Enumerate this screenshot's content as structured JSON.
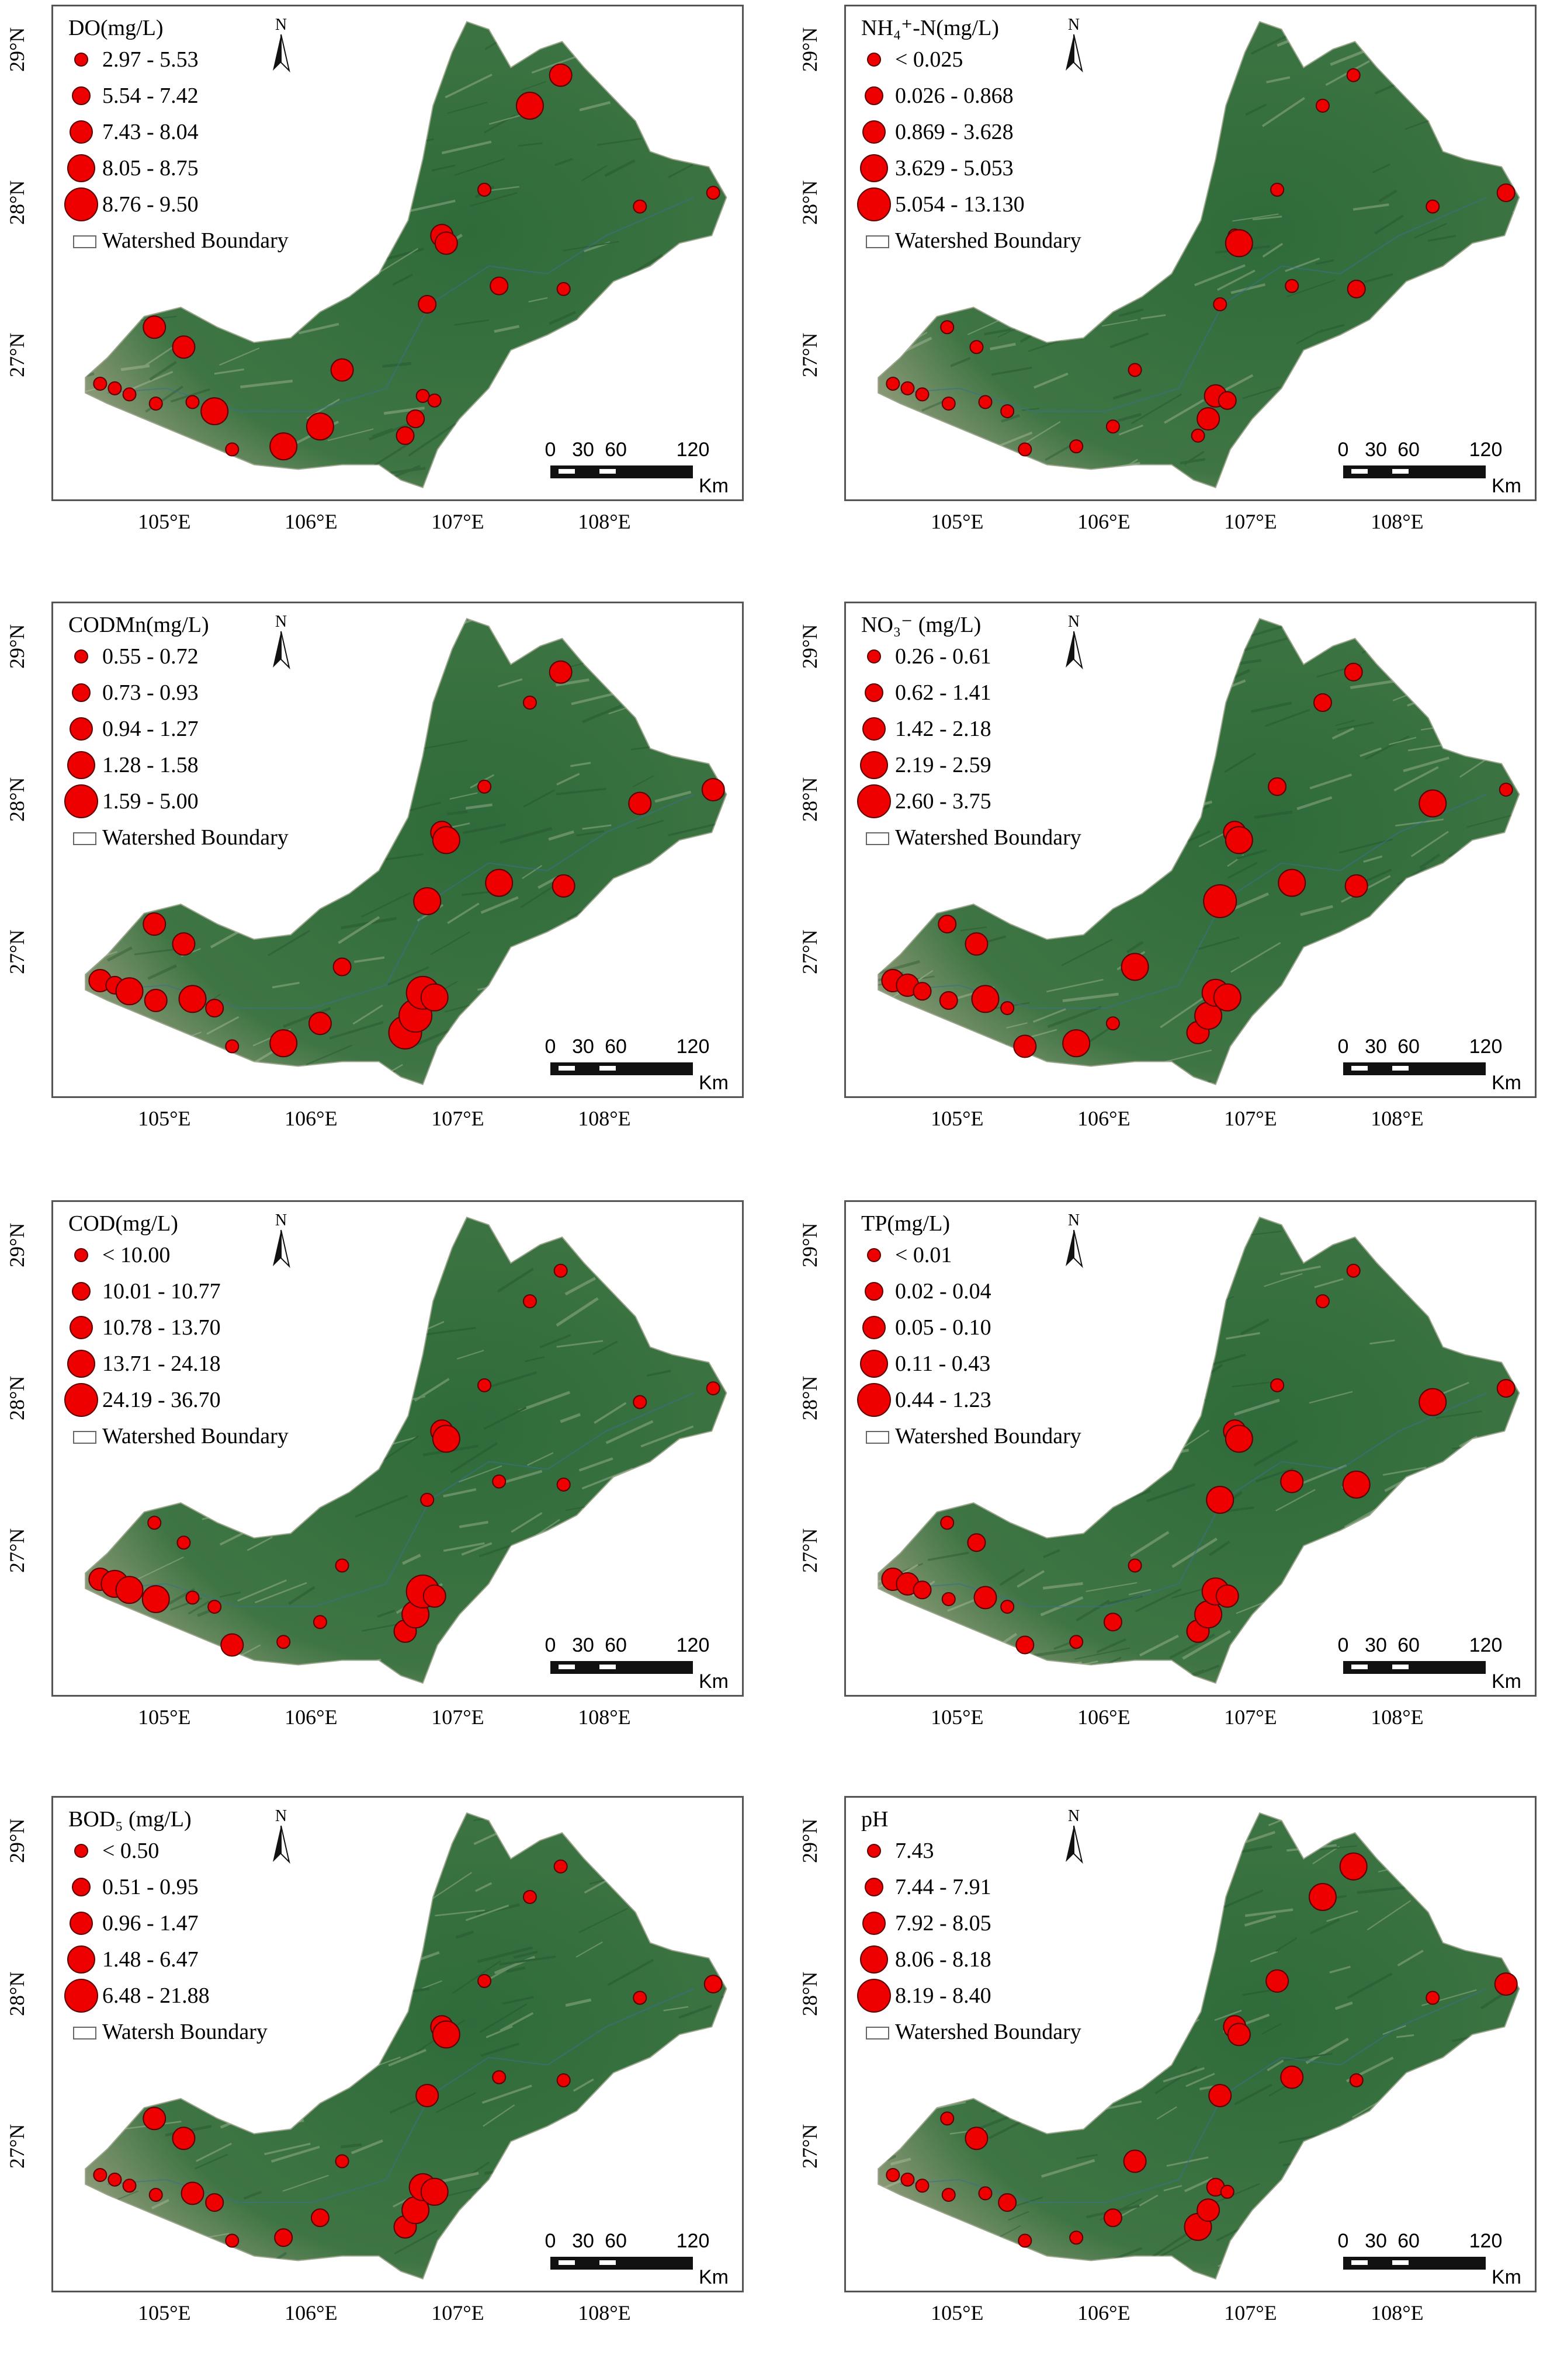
{
  "panels": [
    {
      "legend_title": "DO(mg/L)",
      "classes": [
        "2.97 - 5.53",
        "5.54 - 7.42",
        "7.43 - 8.04",
        "8.05 - 8.75",
        "8.76 - 9.50"
      ],
      "boundary_label": "Watershed Boundary",
      "sites": [
        [
          104.55,
          26.78,
          0
        ],
        [
          104.65,
          26.75,
          0
        ],
        [
          104.75,
          26.71,
          0
        ],
        [
          104.92,
          27.15,
          2
        ],
        [
          104.93,
          26.65,
          0
        ],
        [
          105.12,
          27.02,
          2
        ],
        [
          105.18,
          26.66,
          0
        ],
        [
          105.33,
          26.6,
          3
        ],
        [
          105.45,
          26.35,
          0
        ],
        [
          105.8,
          26.37,
          3
        ],
        [
          106.05,
          26.5,
          3
        ],
        [
          106.2,
          26.87,
          2
        ],
        [
          106.63,
          26.44,
          1
        ],
        [
          106.7,
          26.55,
          1
        ],
        [
          106.75,
          26.7,
          0
        ],
        [
          106.78,
          27.3,
          1
        ],
        [
          106.83,
          26.67,
          0
        ],
        [
          106.88,
          27.75,
          2
        ],
        [
          106.91,
          27.7,
          2
        ],
        [
          107.17,
          28.05,
          0
        ],
        [
          107.27,
          27.42,
          1
        ],
        [
          107.48,
          28.6,
          3
        ],
        [
          107.69,
          28.8,
          2
        ],
        [
          107.71,
          27.4,
          0
        ],
        [
          108.23,
          27.94,
          0
        ],
        [
          108.73,
          28.03,
          0
        ]
      ]
    },
    {
      "legend_title": "NH₄⁺-N(mg/L)",
      "classes": [
        "< 0.025",
        "0.026 - 0.868",
        "0.869 - 3.628",
        "3.629 - 5.053",
        "5.054 - 13.130"
      ],
      "boundary_label": "Watershed Boundary",
      "sites": [
        [
          104.55,
          26.78,
          0
        ],
        [
          104.65,
          26.75,
          0
        ],
        [
          104.75,
          26.71,
          0
        ],
        [
          104.92,
          27.15,
          0
        ],
        [
          104.93,
          26.65,
          0
        ],
        [
          105.12,
          27.02,
          0
        ],
        [
          105.18,
          26.66,
          0
        ],
        [
          105.33,
          26.6,
          0
        ],
        [
          105.45,
          26.35,
          0
        ],
        [
          105.8,
          26.37,
          0
        ],
        [
          106.05,
          26.5,
          0
        ],
        [
          106.2,
          26.87,
          0
        ],
        [
          106.63,
          26.44,
          0
        ],
        [
          106.7,
          26.55,
          2
        ],
        [
          106.75,
          26.7,
          2
        ],
        [
          106.78,
          27.3,
          0
        ],
        [
          106.83,
          26.67,
          1
        ],
        [
          106.88,
          27.75,
          0
        ],
        [
          106.91,
          27.7,
          3
        ],
        [
          107.17,
          28.05,
          0
        ],
        [
          107.27,
          27.42,
          0
        ],
        [
          107.48,
          28.6,
          0
        ],
        [
          107.69,
          28.8,
          0
        ],
        [
          107.71,
          27.4,
          1
        ],
        [
          108.23,
          27.94,
          0
        ],
        [
          108.73,
          28.03,
          1
        ]
      ]
    },
    {
      "legend_title": "CODMn(mg/L)",
      "classes": [
        "0.55 - 0.72",
        "0.73 - 0.93",
        "0.94 - 1.27",
        "1.28 - 1.58",
        "1.59 - 5.00"
      ],
      "boundary_label": "Watershed Boundary",
      "sites": [
        [
          104.55,
          26.78,
          2
        ],
        [
          104.65,
          26.75,
          1
        ],
        [
          104.75,
          26.71,
          3
        ],
        [
          104.92,
          27.15,
          2
        ],
        [
          104.93,
          26.65,
          2
        ],
        [
          105.12,
          27.02,
          2
        ],
        [
          105.18,
          26.66,
          3
        ],
        [
          105.33,
          26.6,
          1
        ],
        [
          105.45,
          26.35,
          0
        ],
        [
          105.8,
          26.37,
          3
        ],
        [
          106.05,
          26.5,
          2
        ],
        [
          106.2,
          26.87,
          1
        ],
        [
          106.63,
          26.44,
          4
        ],
        [
          106.7,
          26.55,
          4
        ],
        [
          106.75,
          26.7,
          4
        ],
        [
          106.78,
          27.3,
          3
        ],
        [
          106.83,
          26.67,
          3
        ],
        [
          106.88,
          27.75,
          2
        ],
        [
          106.91,
          27.7,
          3
        ],
        [
          107.17,
          28.05,
          0
        ],
        [
          107.27,
          27.42,
          3
        ],
        [
          107.48,
          28.6,
          0
        ],
        [
          107.69,
          28.8,
          2
        ],
        [
          107.71,
          27.4,
          2
        ],
        [
          108.23,
          27.94,
          2
        ],
        [
          108.73,
          28.03,
          2
        ]
      ]
    },
    {
      "legend_title": "NO₃⁻ (mg/L)",
      "classes": [
        "0.26 - 0.61",
        "0.62 - 1.41",
        "1.42 - 2.18",
        "2.19 - 2.59",
        "2.60 - 3.75"
      ],
      "boundary_label": "Watershed Boundary",
      "sites": [
        [
          104.55,
          26.78,
          2
        ],
        [
          104.65,
          26.75,
          2
        ],
        [
          104.75,
          26.71,
          1
        ],
        [
          104.92,
          27.15,
          1
        ],
        [
          104.93,
          26.65,
          1
        ],
        [
          105.12,
          27.02,
          2
        ],
        [
          105.18,
          26.66,
          3
        ],
        [
          105.33,
          26.6,
          0
        ],
        [
          105.45,
          26.35,
          2
        ],
        [
          105.8,
          26.37,
          3
        ],
        [
          106.05,
          26.5,
          0
        ],
        [
          106.2,
          26.87,
          3
        ],
        [
          106.63,
          26.44,
          2
        ],
        [
          106.7,
          26.55,
          3
        ],
        [
          106.75,
          26.7,
          3
        ],
        [
          106.78,
          27.3,
          4
        ],
        [
          106.83,
          26.67,
          3
        ],
        [
          106.88,
          27.75,
          2
        ],
        [
          106.91,
          27.7,
          3
        ],
        [
          107.17,
          28.05,
          1
        ],
        [
          107.27,
          27.42,
          3
        ],
        [
          107.48,
          28.6,
          1
        ],
        [
          107.69,
          28.8,
          1
        ],
        [
          107.71,
          27.4,
          2
        ],
        [
          108.23,
          27.94,
          3
        ],
        [
          108.73,
          28.03,
          0
        ]
      ]
    },
    {
      "legend_title": "COD(mg/L)",
      "classes": [
        "< 10.00",
        "10.01 - 10.77",
        "10.78 - 13.70",
        "13.71 - 24.18",
        "24.19 - 36.70"
      ],
      "boundary_label": "Watershed Boundary",
      "sites": [
        [
          104.55,
          26.78,
          2
        ],
        [
          104.65,
          26.75,
          3
        ],
        [
          104.75,
          26.71,
          3
        ],
        [
          104.92,
          27.15,
          0
        ],
        [
          104.93,
          26.65,
          3
        ],
        [
          105.12,
          27.02,
          0
        ],
        [
          105.18,
          26.66,
          0
        ],
        [
          105.33,
          26.6,
          0
        ],
        [
          105.45,
          26.35,
          2
        ],
        [
          105.8,
          26.37,
          0
        ],
        [
          106.05,
          26.5,
          0
        ],
        [
          106.2,
          26.87,
          0
        ],
        [
          106.63,
          26.44,
          2
        ],
        [
          106.7,
          26.55,
          3
        ],
        [
          106.75,
          26.7,
          4
        ],
        [
          106.78,
          27.3,
          0
        ],
        [
          106.83,
          26.67,
          2
        ],
        [
          106.88,
          27.75,
          2
        ],
        [
          106.91,
          27.7,
          3
        ],
        [
          107.17,
          28.05,
          0
        ],
        [
          107.27,
          27.42,
          0
        ],
        [
          107.48,
          28.6,
          0
        ],
        [
          107.69,
          28.8,
          0
        ],
        [
          107.71,
          27.4,
          0
        ],
        [
          108.23,
          27.94,
          0
        ],
        [
          108.73,
          28.03,
          0
        ]
      ]
    },
    {
      "legend_title": "TP(mg/L)",
      "classes": [
        "< 0.01",
        "0.02 - 0.04",
        "0.05 - 0.10",
        "0.11 - 0.43",
        "0.44 - 1.23"
      ],
      "boundary_label": "Watershed Boundary",
      "sites": [
        [
          104.55,
          26.78,
          2
        ],
        [
          104.65,
          26.75,
          2
        ],
        [
          104.75,
          26.71,
          1
        ],
        [
          104.92,
          27.15,
          0
        ],
        [
          104.93,
          26.65,
          0
        ],
        [
          105.12,
          27.02,
          1
        ],
        [
          105.18,
          26.66,
          2
        ],
        [
          105.33,
          26.6,
          0
        ],
        [
          105.45,
          26.35,
          1
        ],
        [
          105.8,
          26.37,
          0
        ],
        [
          106.05,
          26.5,
          1
        ],
        [
          106.2,
          26.87,
          0
        ],
        [
          106.63,
          26.44,
          2
        ],
        [
          106.7,
          26.55,
          3
        ],
        [
          106.75,
          26.7,
          3
        ],
        [
          106.78,
          27.3,
          3
        ],
        [
          106.83,
          26.67,
          2
        ],
        [
          106.88,
          27.75,
          2
        ],
        [
          106.91,
          27.7,
          3
        ],
        [
          107.17,
          28.05,
          0
        ],
        [
          107.27,
          27.42,
          2
        ],
        [
          107.48,
          28.6,
          0
        ],
        [
          107.69,
          28.8,
          0
        ],
        [
          107.71,
          27.4,
          3
        ],
        [
          108.23,
          27.94,
          3
        ],
        [
          108.73,
          28.03,
          1
        ]
      ]
    },
    {
      "legend_title": "BOD₅ (mg/L)",
      "classes": [
        "< 0.50",
        "0.51 - 0.95",
        "0.96 - 1.47",
        "1.48 - 6.47",
        "6.48 - 21.88"
      ],
      "boundary_label": "Watersh Boundary",
      "sites": [
        [
          104.55,
          26.78,
          0
        ],
        [
          104.65,
          26.75,
          0
        ],
        [
          104.75,
          26.71,
          0
        ],
        [
          104.92,
          27.15,
          2
        ],
        [
          104.93,
          26.65,
          0
        ],
        [
          105.12,
          27.02,
          2
        ],
        [
          105.18,
          26.66,
          2
        ],
        [
          105.33,
          26.6,
          1
        ],
        [
          105.45,
          26.35,
          0
        ],
        [
          105.8,
          26.37,
          1
        ],
        [
          106.05,
          26.5,
          1
        ],
        [
          106.2,
          26.87,
          0
        ],
        [
          106.63,
          26.44,
          2
        ],
        [
          106.7,
          26.55,
          3
        ],
        [
          106.75,
          26.7,
          3
        ],
        [
          106.78,
          27.3,
          2
        ],
        [
          106.83,
          26.67,
          3
        ],
        [
          106.88,
          27.75,
          2
        ],
        [
          106.91,
          27.7,
          3
        ],
        [
          107.17,
          28.05,
          0
        ],
        [
          107.27,
          27.42,
          0
        ],
        [
          107.48,
          28.6,
          0
        ],
        [
          107.69,
          28.8,
          0
        ],
        [
          107.71,
          27.4,
          0
        ],
        [
          108.23,
          27.94,
          0
        ],
        [
          108.73,
          28.03,
          1
        ]
      ]
    },
    {
      "legend_title": "pH",
      "classes": [
        "7.43",
        "7.44 - 7.91",
        "7.92 - 8.05",
        "8.06 - 8.18",
        "8.19 - 8.40"
      ],
      "boundary_label": "Watershed Boundary",
      "sites": [
        [
          104.55,
          26.78,
          0
        ],
        [
          104.65,
          26.75,
          0
        ],
        [
          104.75,
          26.71,
          0
        ],
        [
          104.92,
          27.15,
          0
        ],
        [
          104.93,
          26.65,
          0
        ],
        [
          105.12,
          27.02,
          2
        ],
        [
          105.18,
          26.66,
          0
        ],
        [
          105.33,
          26.6,
          1
        ],
        [
          105.45,
          26.35,
          0
        ],
        [
          105.8,
          26.37,
          0
        ],
        [
          106.05,
          26.5,
          1
        ],
        [
          106.2,
          26.87,
          2
        ],
        [
          106.63,
          26.44,
          3
        ],
        [
          106.7,
          26.55,
          2
        ],
        [
          106.75,
          26.7,
          1
        ],
        [
          106.78,
          27.3,
          2
        ],
        [
          106.83,
          26.67,
          0
        ],
        [
          106.88,
          27.75,
          2
        ],
        [
          106.91,
          27.7,
          2
        ],
        [
          107.17,
          28.05,
          2
        ],
        [
          107.27,
          27.42,
          2
        ],
        [
          107.48,
          28.6,
          3
        ],
        [
          107.69,
          28.8,
          3
        ],
        [
          107.71,
          27.4,
          0
        ],
        [
          108.23,
          27.94,
          0
        ],
        [
          108.73,
          28.03,
          2
        ]
      ]
    }
  ],
  "north_label": "N",
  "scale": {
    "labels": [
      "0",
      "30",
      "60",
      "120"
    ],
    "unit": "Km"
  },
  "lat_ticks": [
    "29°N",
    "28°N",
    "27°N"
  ],
  "lon_ticks": [
    "105°E",
    "106°E",
    "107°E",
    "108°E"
  ],
  "colors": {
    "marker": "#ee0000",
    "marker_edge": "#5a0000",
    "vegetation": "#2f6b3a",
    "karst_light": "#8d9a78",
    "frame": "#555555"
  }
}
